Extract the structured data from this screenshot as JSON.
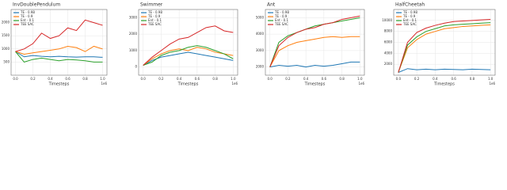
{
  "chart_data": [
    {
      "type": "line",
      "title": "InvDoublePendulum",
      "xlabel": "Timesteps",
      "x_exponent": "1e6",
      "x": [
        0,
        0.1,
        0.2,
        0.3,
        0.4,
        0.5,
        0.6,
        0.7,
        0.8,
        0.9,
        1.0
      ],
      "xlim": [
        -0.05,
        1.05
      ],
      "xticks": [
        0.0,
        0.2,
        0.4,
        0.6,
        0.8,
        1.0
      ],
      "ylim": [
        0,
        2500
      ],
      "yticks": [
        500,
        1000,
        1500,
        2000
      ],
      "grid": true,
      "legend": "upper left",
      "series": [
        {
          "name": "TE - 0.98",
          "color": "#1f77b4",
          "values": [
            900,
            700,
            750,
            720,
            700,
            720,
            700,
            690,
            700,
            700,
            680
          ]
        },
        {
          "name": "TE - 0.9",
          "color": "#ff7f0e",
          "values": [
            900,
            800,
            850,
            900,
            950,
            1000,
            1100,
            1050,
            900,
            1100,
            1000
          ]
        },
        {
          "name": "Ent - 0.1",
          "color": "#2ca02c",
          "values": [
            900,
            500,
            600,
            650,
            600,
            550,
            600,
            580,
            550,
            500,
            500
          ]
        },
        {
          "name": "TEE SAC",
          "color": "#d62728",
          "values": [
            900,
            1000,
            1200,
            1600,
            1400,
            1500,
            1800,
            1700,
            2100,
            2000,
            1900
          ]
        }
      ]
    },
    {
      "type": "line",
      "title": "Swimmer",
      "xlabel": "Timesteps",
      "x_exponent": "1e6",
      "x": [
        0,
        0.1,
        0.2,
        0.3,
        0.4,
        0.5,
        0.6,
        0.7,
        0.8,
        0.9,
        1.0
      ],
      "xlim": [
        -0.05,
        1.05
      ],
      "xticks": [
        0.0,
        0.2,
        0.4,
        0.6,
        0.8,
        1.0
      ],
      "ylim": [
        -500,
        3500
      ],
      "yticks": [
        0,
        1000,
        2000,
        3000
      ],
      "grid": true,
      "legend": "upper left",
      "series": [
        {
          "name": "TE - 0.98",
          "color": "#1f77b4",
          "values": [
            100,
            400,
            600,
            700,
            800,
            900,
            800,
            700,
            600,
            500,
            400
          ]
        },
        {
          "name": "TE - 0.9",
          "color": "#ff7f0e",
          "values": [
            100,
            500,
            800,
            1000,
            1100,
            1000,
            1200,
            1100,
            900,
            800,
            700
          ]
        },
        {
          "name": "Ent - 0.1",
          "color": "#2ca02c",
          "values": [
            100,
            300,
            700,
            900,
            1000,
            1200,
            1300,
            1200,
            1000,
            800,
            500
          ]
        },
        {
          "name": "TEE SAC",
          "color": "#d62728",
          "values": [
            100,
            600,
            1000,
            1400,
            1700,
            1800,
            2100,
            2400,
            2500,
            2200,
            2100
          ]
        }
      ]
    },
    {
      "type": "line",
      "title": "Ant",
      "xlabel": "Timesteps",
      "x_exponent": "1e6",
      "x": [
        0,
        0.1,
        0.2,
        0.3,
        0.4,
        0.5,
        0.6,
        0.7,
        0.8,
        0.9,
        1.0
      ],
      "xlim": [
        -0.05,
        1.05
      ],
      "xticks": [
        0.0,
        0.2,
        0.4,
        0.6,
        0.8,
        1.0
      ],
      "ylim": [
        1500,
        5500
      ],
      "yticks": [
        2000,
        3000,
        4000,
        5000
      ],
      "grid": true,
      "legend": "upper left",
      "series": [
        {
          "name": "TE - 0.98",
          "color": "#1f77b4",
          "values": [
            2000,
            2100,
            2050,
            2100,
            2000,
            2100,
            2050,
            2100,
            2200,
            2300,
            2300
          ]
        },
        {
          "name": "TE - 0.9",
          "color": "#ff7f0e",
          "values": [
            2000,
            3000,
            3300,
            3500,
            3600,
            3700,
            3800,
            3850,
            3800,
            3850,
            3850
          ]
        },
        {
          "name": "Ent - 0.1",
          "color": "#2ca02c",
          "values": [
            2000,
            3500,
            3900,
            4100,
            4300,
            4500,
            4600,
            4700,
            4800,
            4900,
            5000
          ]
        },
        {
          "name": "TEE SAC",
          "color": "#d62728",
          "values": [
            2000,
            3300,
            3800,
            4100,
            4300,
            4400,
            4600,
            4700,
            4900,
            5000,
            5100
          ]
        }
      ]
    },
    {
      "type": "line",
      "title": "HalfCheetah",
      "xlabel": "Timesteps",
      "x_exponent": "1e6",
      "x": [
        0,
        0.1,
        0.2,
        0.3,
        0.4,
        0.5,
        0.6,
        0.7,
        0.8,
        0.9,
        1.0
      ],
      "xlim": [
        -0.05,
        1.05
      ],
      "xticks": [
        0.0,
        0.2,
        0.4,
        0.6,
        0.8,
        1.0
      ],
      "ylim": [
        0,
        12000
      ],
      "yticks": [
        2000,
        4000,
        6000,
        8000,
        10000
      ],
      "grid": true,
      "legend": "upper left",
      "series": [
        {
          "name": "TE - 0.98",
          "color": "#1f77b4",
          "values": [
            500,
            1200,
            1000,
            1100,
            1000,
            1100,
            1050,
            1000,
            1100,
            1050,
            1000
          ]
        },
        {
          "name": "TE - 0.9",
          "color": "#ff7f0e",
          "values": [
            500,
            5000,
            6500,
            7500,
            8000,
            8500,
            8700,
            8900,
            9000,
            9100,
            9200
          ]
        },
        {
          "name": "Ent - 0.1",
          "color": "#2ca02c",
          "values": [
            500,
            5500,
            7000,
            8000,
            8500,
            9000,
            9200,
            9300,
            9400,
            9500,
            9600
          ]
        },
        {
          "name": "TEE SAC",
          "color": "#d62728",
          "values": [
            500,
            6000,
            7800,
            8600,
            9100,
            9500,
            9800,
            9900,
            10000,
            10100,
            10200
          ]
        }
      ]
    }
  ]
}
